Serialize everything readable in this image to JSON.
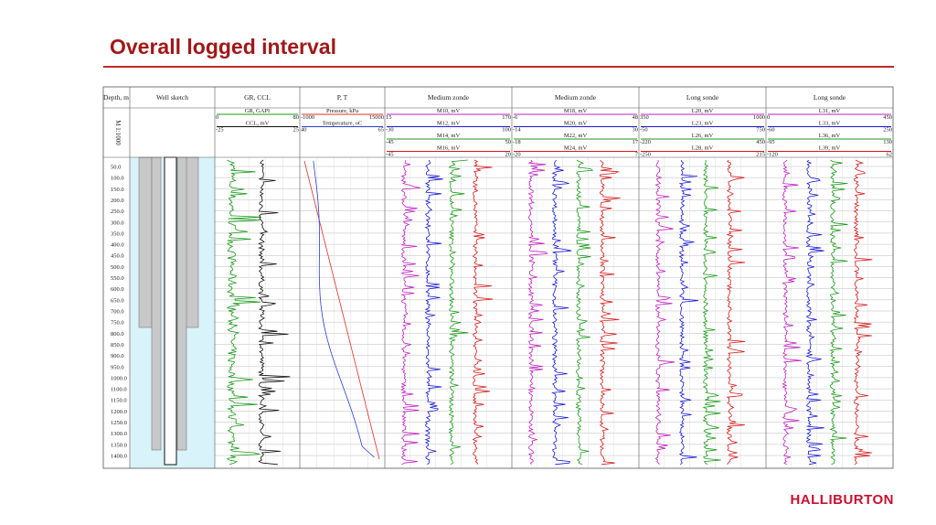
{
  "title": "Overall logged interval",
  "logo": "HALLIBURTON",
  "log": {
    "depth_header": "Depth, m",
    "scale": "M 1:1000",
    "depths": [
      "50.0",
      "100.0",
      "150.0",
      "200.0",
      "250.0",
      "300.0",
      "350.0",
      "400.0",
      "450.0",
      "500.0",
      "550.0",
      "600.0",
      "650.0",
      "700.0",
      "750.0",
      "800.0",
      "850.0",
      "900.0",
      "950.0",
      "1000.0",
      "1100.0",
      "1150.0",
      "1200.0",
      "1250.0",
      "1300.0",
      "1350.0",
      "1400.0"
    ],
    "tracks": [
      {
        "title": "Well sketch",
        "curves": []
      },
      {
        "title": "GR, CCL",
        "curves": [
          {
            "name": "GR, GAPI",
            "min": 0,
            "max": 80,
            "color": "#1a9a1a"
          },
          {
            "name": "CCL, mV",
            "min": -25,
            "max": 25,
            "color": "#111111"
          }
        ]
      },
      {
        "title": "P, T",
        "curves": [
          {
            "name": "Pressure, kPa",
            "min": -1000,
            "max": 15000,
            "color": "#e0302a"
          },
          {
            "name": "Temperature, oC",
            "min": 40,
            "max": 65,
            "color": "#2a3fd6"
          }
        ]
      },
      {
        "title": "Medium zonde",
        "curves": [
          {
            "name": "M10, mV",
            "min": 15,
            "max": 170,
            "color": "#c21fc2"
          },
          {
            "name": "M12, mV",
            "min": -30,
            "max": 100,
            "color": "#1a1ad6"
          },
          {
            "name": "M14, mV",
            "min": -45,
            "max": 50,
            "color": "#1a9a1a"
          },
          {
            "name": "M16, mV",
            "min": -45,
            "max": 20,
            "color": "#d61a1a"
          }
        ]
      },
      {
        "title": "Medium zonde",
        "curves": [
          {
            "name": "M18, mV",
            "min": -6,
            "max": 48,
            "color": "#c21fc2"
          },
          {
            "name": "M20, mV",
            "min": -14,
            "max": 30,
            "color": "#1a1ad6"
          },
          {
            "name": "M22, mV",
            "min": -18,
            "max": 17,
            "color": "#1a9a1a"
          },
          {
            "name": "M24, mV",
            "min": -20,
            "max": 7,
            "color": "#d61a1a"
          }
        ]
      },
      {
        "title": "Long sonde",
        "curves": [
          {
            "name": "L20, mV",
            "min": 350,
            "max": 1000,
            "color": "#c21fc2"
          },
          {
            "name": "L23, mV",
            "min": -50,
            "max": 750,
            "color": "#1a1ad6"
          },
          {
            "name": "L26, mV",
            "min": -220,
            "max": 450,
            "color": "#1a9a1a"
          },
          {
            "name": "L28, mV",
            "min": -250,
            "max": 215,
            "color": "#d61a1a"
          }
        ]
      },
      {
        "title": "Long sonde",
        "curves": [
          {
            "name": "L31, mV",
            "min": 0,
            "max": 450,
            "color": "#c21fc2"
          },
          {
            "name": "L33, mV",
            "min": -60,
            "max": 250,
            "color": "#1a1ad6"
          },
          {
            "name": "L36, mV",
            "min": -95,
            "max": 130,
            "color": "#1a9a1a"
          },
          {
            "name": "L39, mV",
            "min": -120,
            "max": 62,
            "color": "#d61a1a"
          }
        ]
      }
    ]
  }
}
